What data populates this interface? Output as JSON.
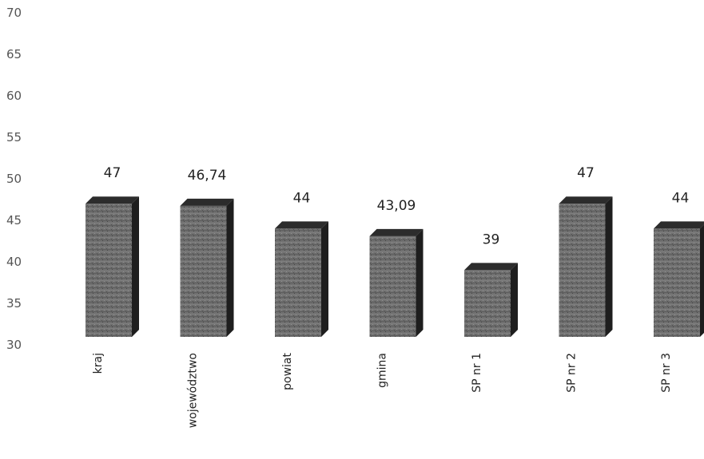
{
  "chart_data": {
    "type": "bar",
    "categories": [
      "kraj",
      "województwo",
      "powiat",
      "gmina",
      "SP nr 1",
      "SP nr 2",
      "SP nr 3"
    ],
    "values": [
      47,
      46.74,
      44,
      43.09,
      39,
      47,
      44
    ],
    "data_labels": [
      "47",
      "46,74",
      "44",
      "43,09",
      "39",
      "47",
      "44"
    ],
    "y_ticks": [
      "30",
      "35",
      "40",
      "45",
      "50",
      "55",
      "60",
      "65",
      "70"
    ],
    "ylim": [
      30,
      70
    ],
    "grid": false,
    "legend": "none",
    "bar_style": "3d",
    "colors": {
      "bar_front": "#6b6b6b",
      "bar_side": "#1e1e1e",
      "bar_top": "#2c2c2c"
    }
  }
}
